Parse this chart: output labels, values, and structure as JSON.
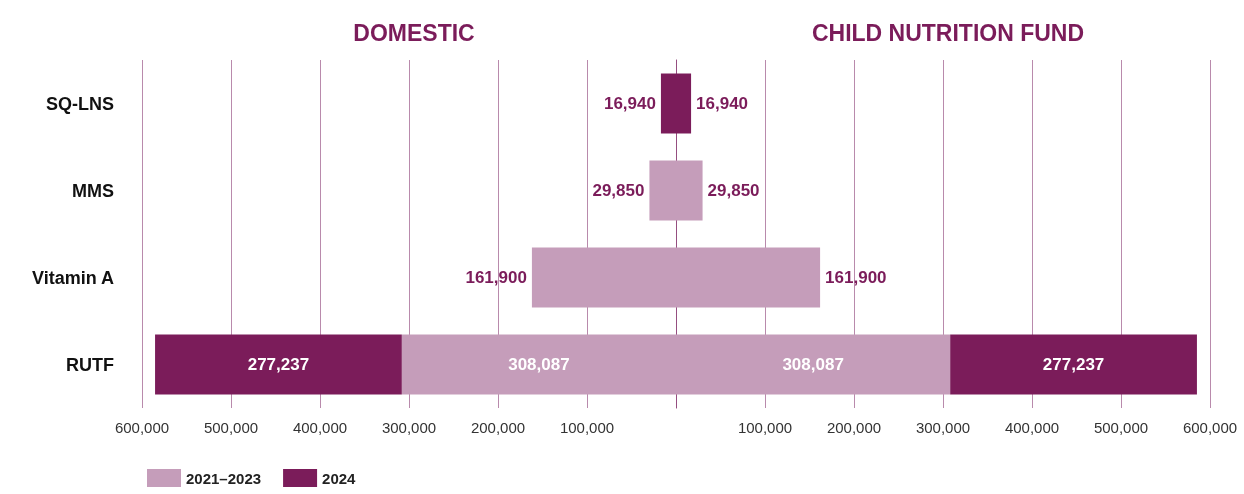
{
  "chart_data": [
    {
      "type": "bar",
      "title": "DOMESTIC",
      "orientation": "horizontal",
      "stacked": true,
      "categories": [
        "SQ-LNS",
        "MMS",
        "Vitamin A",
        "RUTF"
      ],
      "series": [
        {
          "name": "2021–2023",
          "color": "#c59dba",
          "values": [
            null,
            29850,
            161900,
            308087
          ],
          "value_labels": [
            null,
            "29,850",
            "161,900",
            "308,087"
          ]
        },
        {
          "name": "2024",
          "color": "#7b1c5a",
          "values": [
            16940,
            null,
            null,
            277237
          ],
          "value_labels": [
            "16,940",
            null,
            null,
            "277,237"
          ]
        }
      ],
      "xlim": [
        600000,
        0
      ],
      "xticks": [
        {
          "value": 600000,
          "label": "600,000"
        },
        {
          "value": 500000,
          "label": "500,000"
        },
        {
          "value": 400000,
          "label": "400,000"
        },
        {
          "value": 300000,
          "label": "300,000"
        },
        {
          "value": 200000,
          "label": "200,000"
        },
        {
          "value": 100000,
          "label": "100,000"
        }
      ],
      "grid": "x",
      "legend": "bottom left"
    },
    {
      "type": "bar",
      "title": "CHILD NUTRITION FUND",
      "orientation": "horizontal",
      "stacked": true,
      "categories": [
        null,
        null,
        null,
        null
      ],
      "series": [
        {
          "color": "#c59dba",
          "values": [
            null,
            29850,
            161900,
            308087
          ],
          "value_labels": [
            null,
            "29,850",
            "161,900",
            "308,087"
          ]
        },
        {
          "color": "#7b1c5a",
          "values": [
            16940,
            null,
            null,
            277237
          ],
          "value_labels": [
            "16,940",
            null,
            null,
            "277,237"
          ]
        }
      ],
      "xlim": [
        0,
        600000
      ],
      "xticks": [
        {
          "value": 0,
          "label": null
        },
        {
          "value": 100000,
          "label": "100,000"
        },
        {
          "value": 200000,
          "label": "200,000"
        },
        {
          "value": 300000,
          "label": "300,000"
        },
        {
          "value": 400000,
          "label": "400,000"
        },
        {
          "value": 500000,
          "label": "500,000"
        },
        {
          "value": 600000,
          "label": "600,000"
        }
      ],
      "grid": "x"
    }
  ]
}
